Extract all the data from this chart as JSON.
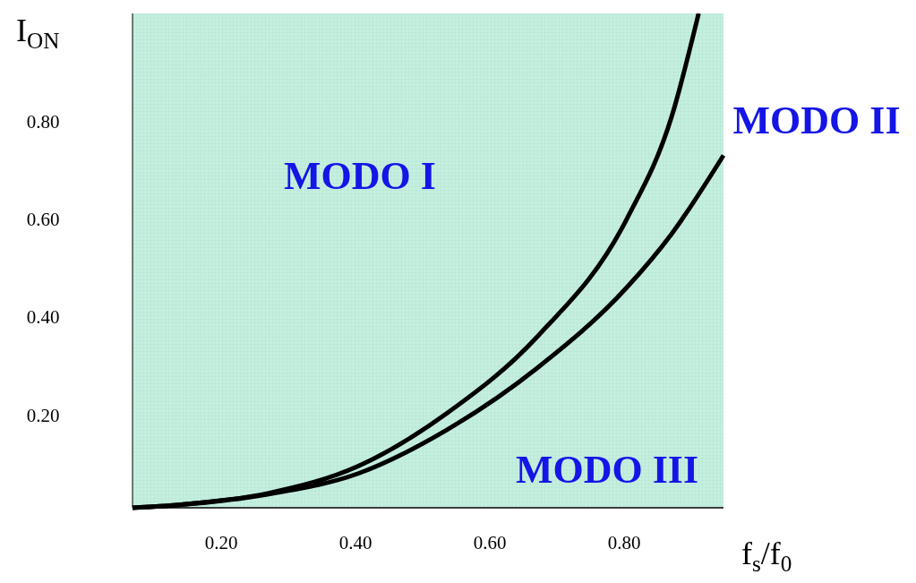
{
  "chart_data": {
    "type": "line",
    "xlabel": "f$_{s}$/f$_{0}$",
    "ylabel": "I$_{ON}$",
    "xlim": [
      0.068,
      0.948
    ],
    "ylim": [
      0.01,
      1.02
    ],
    "xticks": [
      {
        "value": 0.2,
        "label": "0.20"
      },
      {
        "value": 0.4,
        "label": "0.40"
      },
      {
        "value": 0.6,
        "label": "0.60"
      },
      {
        "value": 0.8,
        "label": "0.80"
      }
    ],
    "yticks": [
      {
        "value": 0.2,
        "label": "0.20"
      },
      {
        "value": 0.4,
        "label": "0.40"
      },
      {
        "value": 0.6,
        "label": "0.60"
      },
      {
        "value": 0.8,
        "label": "0.80"
      }
    ],
    "grid": false,
    "marker": "none",
    "line_style": "solid",
    "series": [
      {
        "color": "#000000",
        "x": [
          0.068,
          0.137,
          0.271,
          0.404,
          0.537,
          0.671,
          0.804,
          0.871,
          0.911
        ],
        "values": [
          0.01,
          0.016,
          0.04,
          0.095,
          0.204,
          0.36,
          0.6,
          0.81,
          1.02
        ]
      },
      {
        "color": "#000000",
        "x": [
          0.068,
          0.137,
          0.271,
          0.404,
          0.537,
          0.671,
          0.804,
          0.871,
          0.948
        ],
        "values": [
          0.01,
          0.016,
          0.038,
          0.08,
          0.17,
          0.296,
          0.46,
          0.57,
          0.73
        ]
      }
    ],
    "annotations": [
      "MODO I",
      "MODO II",
      "MODO III"
    ]
  }
}
